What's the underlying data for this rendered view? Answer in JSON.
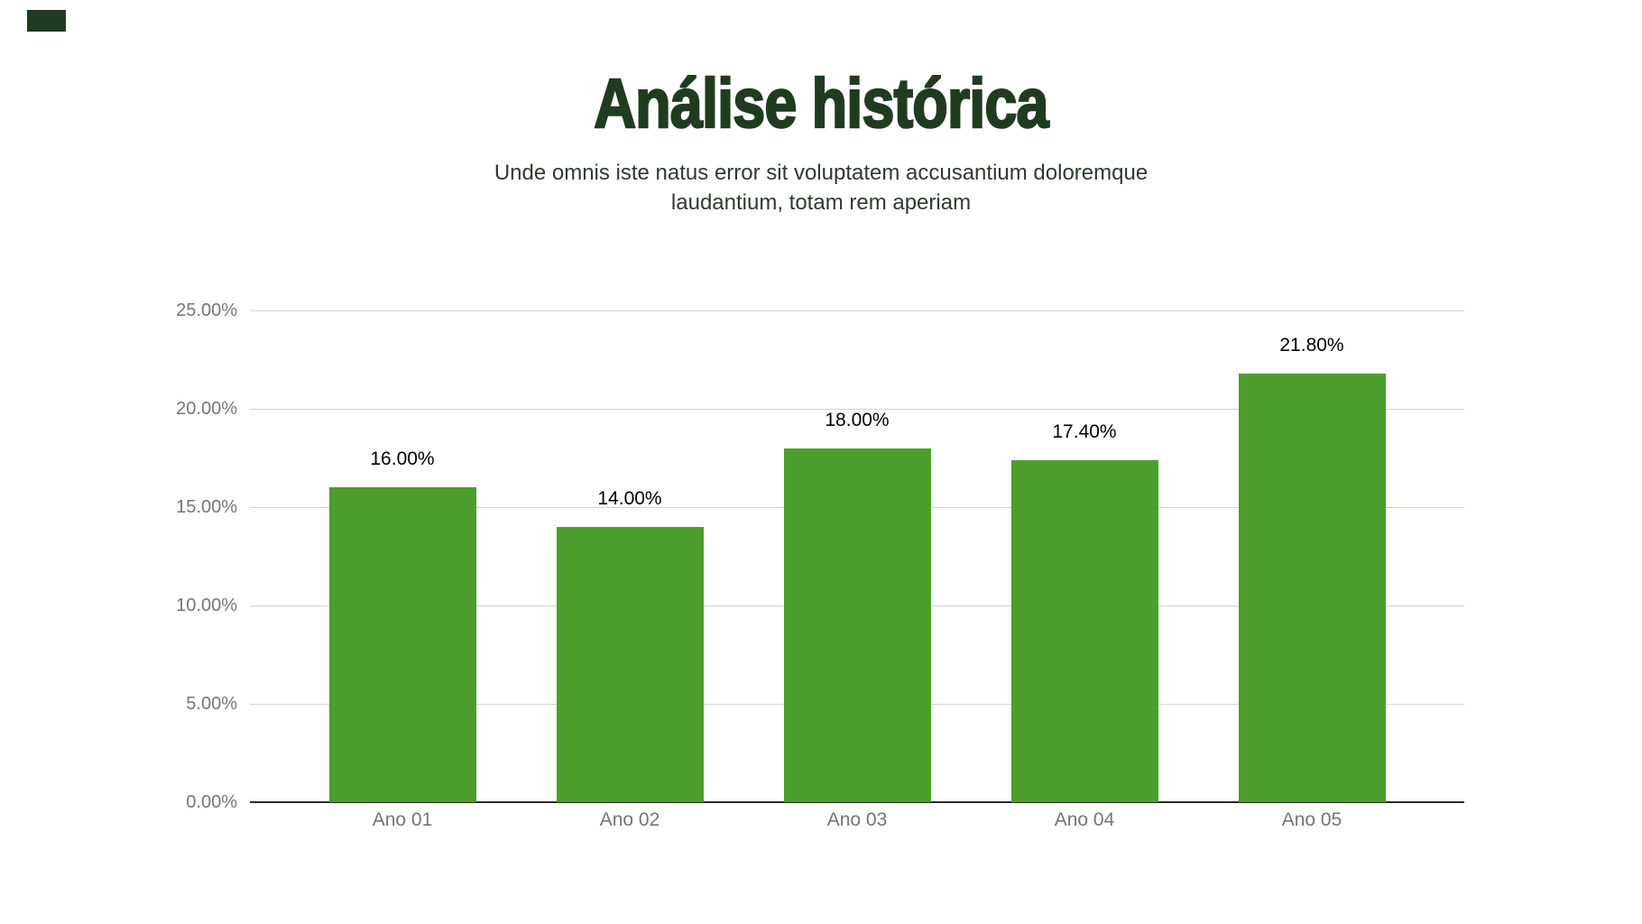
{
  "page": {
    "background": "#ffffff"
  },
  "accent": {
    "color": "#203c20"
  },
  "header": {
    "title": "Análise histórica",
    "title_color": "#203c20",
    "subtitle_line1": "Unde omnis iste natus error sit voluptatem accusantium doloremque",
    "subtitle_line2": "laudantium, totam rem aperiam",
    "subtitle_color": "#2e3b2e"
  },
  "chart_data": {
    "type": "bar",
    "title": "Análise histórica",
    "categories": [
      "Ano 01",
      "Ano 02",
      "Ano 03",
      "Ano 04",
      "Ano 05"
    ],
    "values": [
      16.0,
      14.0,
      18.0,
      17.4,
      21.8
    ],
    "value_labels": [
      "16.00%",
      "14.00%",
      "18.00%",
      "17.40%",
      "21.80%"
    ],
    "y_ticks": [
      "0.00%",
      "5.00%",
      "10.00%",
      "15.00%",
      "20.00%",
      "25.00%"
    ],
    "ylim": [
      0,
      25
    ],
    "y_step": 5,
    "grid": true,
    "legend": "none",
    "xlabel": "",
    "ylabel": "",
    "bar_color": "#4d9e2c",
    "gridline_color": "#d2d2d2",
    "baseline_color": "#2a2a2a",
    "axis_tick_color": "#757575",
    "value_label_color": "#000000"
  }
}
